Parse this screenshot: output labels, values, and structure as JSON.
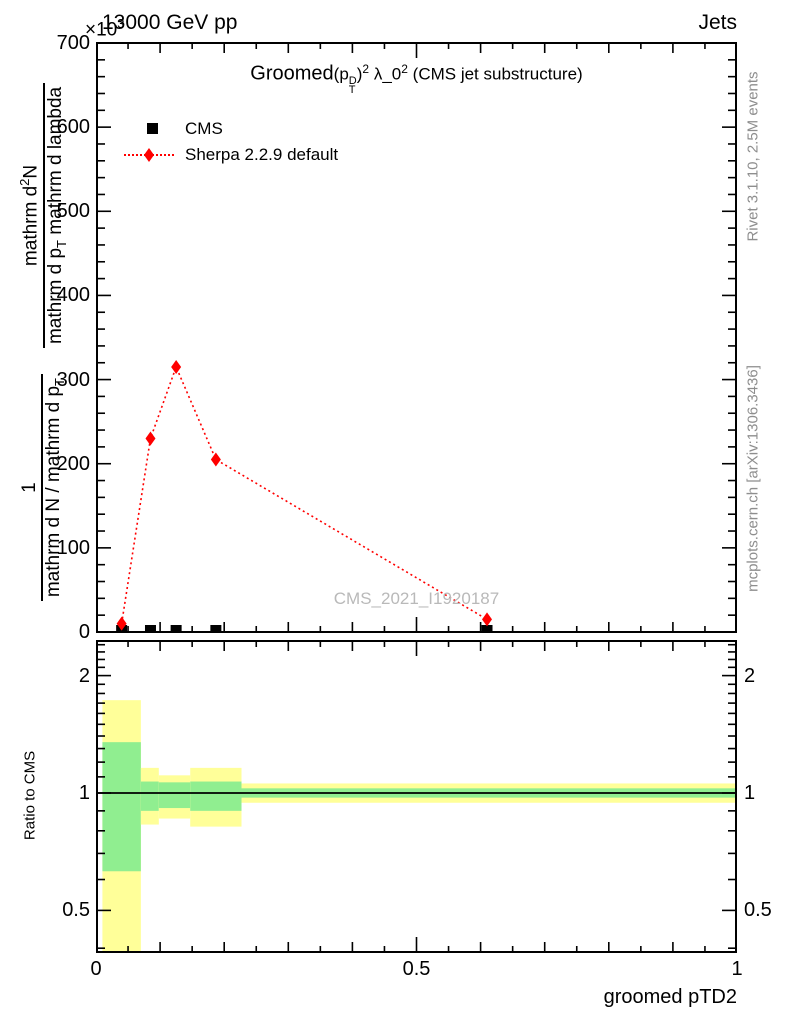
{
  "header": {
    "multiplier_base": "×10",
    "multiplier_exp": "3",
    "beam": "13000 GeV pp",
    "corner_right": "Jets"
  },
  "title_parts": {
    "groomed": "Groomed",
    "p_open": "(p",
    "stack_top": "D",
    "stack_bottom": "T",
    "p_close": ")",
    "exp_a": "2",
    "lambda_mid": " λ_0",
    "exp_b": "2",
    "rest": " (CMS jet substructure)"
  },
  "legend": {
    "cms_label": "CMS",
    "sherpa_label": "Sherpa 2.2.9 default"
  },
  "ylabel_parts": {
    "f1_num": "1",
    "f1_den_a": "mathrm d N / mathrm d p",
    "f1_den_sub": "T",
    "f2_num_a": "mathrm d",
    "f2_num_sup": "2",
    "f2_num_b": "N",
    "f2_den_a": "mathrm d p",
    "f2_den_sub": "T",
    "f2_den_b": " mathrm d lambda"
  },
  "ratio_ylabel": "Ratio to CMS",
  "watermark": "CMS_2021_I1920187",
  "side_texts": {
    "top_right": "Rivet 3.1.10,  2.5M events",
    "bottom_right": "mcplots.cern.ch [arXiv:1306.3436]"
  },
  "colors": {
    "sherpa_red": "#ff0000",
    "band_yellow": "#ffff99",
    "band_green": "#90ee90",
    "gray_text": "#8e8e8e",
    "watermark_gray": "#b9b9b9"
  },
  "chart_data": {
    "type": "line",
    "title": "Groomed (p_T^D)^2 lambda_0^2 (CMS jet substructure)",
    "xlabel": "groomed pTD2",
    "ylabel": "1/(dN/dp_T) d^2N/(dp_T dlambda)",
    "y_multiplier": "×10^3",
    "xlim": [
      0,
      1
    ],
    "ylim": [
      0,
      700
    ],
    "yticks": [
      0,
      100,
      200,
      300,
      400,
      500,
      600,
      700
    ],
    "ytick_labels": [
      "0",
      "100",
      "200",
      "300",
      "400",
      "500",
      "600",
      "700"
    ],
    "xticks": [
      0,
      0.5,
      1
    ],
    "xtick_labels": [
      "0",
      "0.5",
      "1"
    ],
    "legend_position": "top-left",
    "grid": false,
    "series": [
      {
        "name": "CMS",
        "type": "scatter",
        "marker": "square",
        "color": "#000000",
        "x": [
          0.04,
          0.085,
          0.125,
          0.187,
          0.61
        ],
        "y": [
          0,
          0,
          0,
          0,
          0
        ]
      },
      {
        "name": "Sherpa 2.2.9 default",
        "type": "line-scatter",
        "marker": "diamond",
        "line_style": "dotted",
        "color": "#ff0000",
        "x": [
          0.04,
          0.085,
          0.125,
          0.187,
          0.61
        ],
        "y": [
          10,
          230,
          315,
          205,
          15
        ]
      }
    ],
    "ratio_panel": {
      "ylabel": "Ratio to CMS",
      "yscale": "log",
      "ylim": [
        0.39,
        2.47
      ],
      "yticks": [
        0.5,
        1,
        2
      ],
      "ytick_labels": [
        "0.5",
        "1",
        "2"
      ],
      "reference_line": 1,
      "bands": [
        {
          "x0": 0.01,
          "x1": 0.07,
          "yellow_lo": 0.35,
          "yellow_hi": 1.73,
          "green_lo": 0.63,
          "green_hi": 1.35
        },
        {
          "x0": 0.07,
          "x1": 0.098,
          "yellow_lo": 0.83,
          "yellow_hi": 1.16,
          "green_lo": 0.9,
          "green_hi": 1.07
        },
        {
          "x0": 0.098,
          "x1": 0.147,
          "yellow_lo": 0.86,
          "yellow_hi": 1.11,
          "green_lo": 0.915,
          "green_hi": 1.065
        },
        {
          "x0": 0.147,
          "x1": 0.227,
          "yellow_lo": 0.82,
          "yellow_hi": 1.16,
          "green_lo": 0.9,
          "green_hi": 1.07
        },
        {
          "x0": 0.227,
          "x1": 1.0,
          "yellow_lo": 0.944,
          "yellow_hi": 1.058,
          "green_lo": 0.973,
          "green_hi": 1.028
        }
      ]
    }
  }
}
